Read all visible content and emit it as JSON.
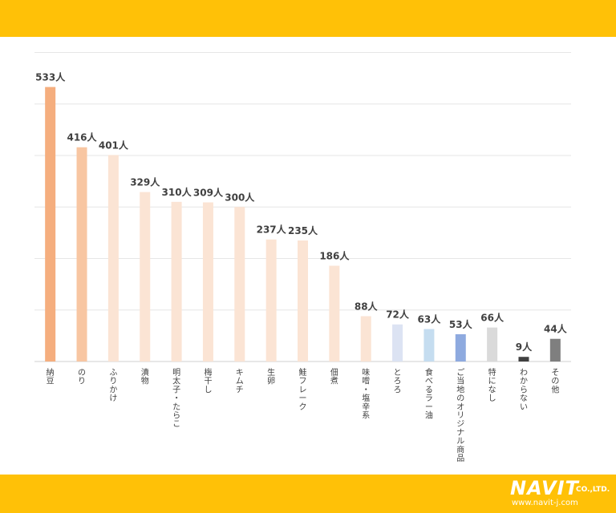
{
  "theme": {
    "band_color": "#FFC107",
    "grid_color": "#e6e6e6",
    "label_color": "#404040"
  },
  "brand": {
    "name": "NAVIT",
    "suffix": "CO.,LTD.",
    "url": "www.navit-j.com"
  },
  "chart_data": {
    "type": "bar",
    "title": "",
    "xlabel": "",
    "ylabel": "",
    "ylim": [
      0,
      600
    ],
    "grid": true,
    "value_suffix": "人",
    "categories": [
      "納豆",
      "のり",
      "ふりかけ",
      "漬物",
      "明太子・たらこ",
      "梅干し",
      "キムチ",
      "生卵",
      "鮭フレーク",
      "佃煮",
      "味噌・塩辛系",
      "とろろ",
      "食べるラー油",
      "ご当地のオリジナル商品",
      "特になし",
      "わからない",
      "その他"
    ],
    "values": [
      533,
      416,
      401,
      329,
      310,
      309,
      300,
      237,
      235,
      186,
      88,
      72,
      63,
      53,
      66,
      9,
      44
    ],
    "colors": [
      "#F5AE7E",
      "#F8C6A2",
      "#FBE4D4",
      "#FBE4D4",
      "#FBE4D4",
      "#FBE4D4",
      "#FBE4D4",
      "#FBE4D4",
      "#FBE4D4",
      "#FBE4D4",
      "#FBE4D4",
      "#DCE3F3",
      "#C5DDF0",
      "#8EAADF",
      "#DADADA",
      "#404040",
      "#7F7F7F"
    ]
  }
}
